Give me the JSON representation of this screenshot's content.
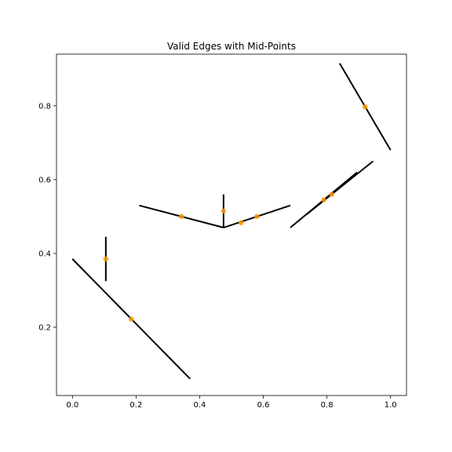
{
  "chart_data": {
    "type": "scatter",
    "title": "Valid Edges with Mid-Points",
    "xlabel": "",
    "ylabel": "",
    "xlim": [
      -0.05,
      1.05
    ],
    "ylim": [
      0.015,
      0.94
    ],
    "x_ticks": [
      0.0,
      0.2,
      0.4,
      0.6,
      0.8,
      1.0
    ],
    "x_tick_labels": [
      "0.0",
      "0.2",
      "0.4",
      "0.6",
      "0.8",
      "1.0"
    ],
    "y_ticks": [
      0.2,
      0.4,
      0.6,
      0.8
    ],
    "y_tick_labels": [
      "0.2",
      "0.4",
      "0.6",
      "0.8"
    ],
    "grid": false,
    "edges": [
      {
        "x": [
          0.105,
          0.105
        ],
        "y": [
          0.325,
          0.445
        ]
      },
      {
        "x": [
          0.0,
          0.37
        ],
        "y": [
          0.385,
          0.06
        ]
      },
      {
        "x": [
          0.21,
          0.475
        ],
        "y": [
          0.53,
          0.47
        ]
      },
      {
        "x": [
          0.475,
          0.475
        ],
        "y": [
          0.47,
          0.56
        ]
      },
      {
        "x": [
          0.475,
          0.685
        ],
        "y": [
          0.47,
          0.53
        ]
      },
      {
        "x": [
          0.685,
          0.895
        ],
        "y": [
          0.47,
          0.62
        ]
      },
      {
        "x": [
          0.735,
          0.945
        ],
        "y": [
          0.505,
          0.65
        ]
      },
      {
        "x": [
          0.84,
          1.0
        ],
        "y": [
          0.915,
          0.68
        ]
      }
    ],
    "midpoints": {
      "x": [
        0.105,
        0.185,
        0.343,
        0.475,
        0.53,
        0.58,
        0.79,
        0.815,
        0.92
      ],
      "y": [
        0.385,
        0.222,
        0.5,
        0.515,
        0.483,
        0.5,
        0.545,
        0.56,
        0.797
      ]
    },
    "colors": {
      "edge": "#000000",
      "midpoint": "#ff9900"
    }
  }
}
